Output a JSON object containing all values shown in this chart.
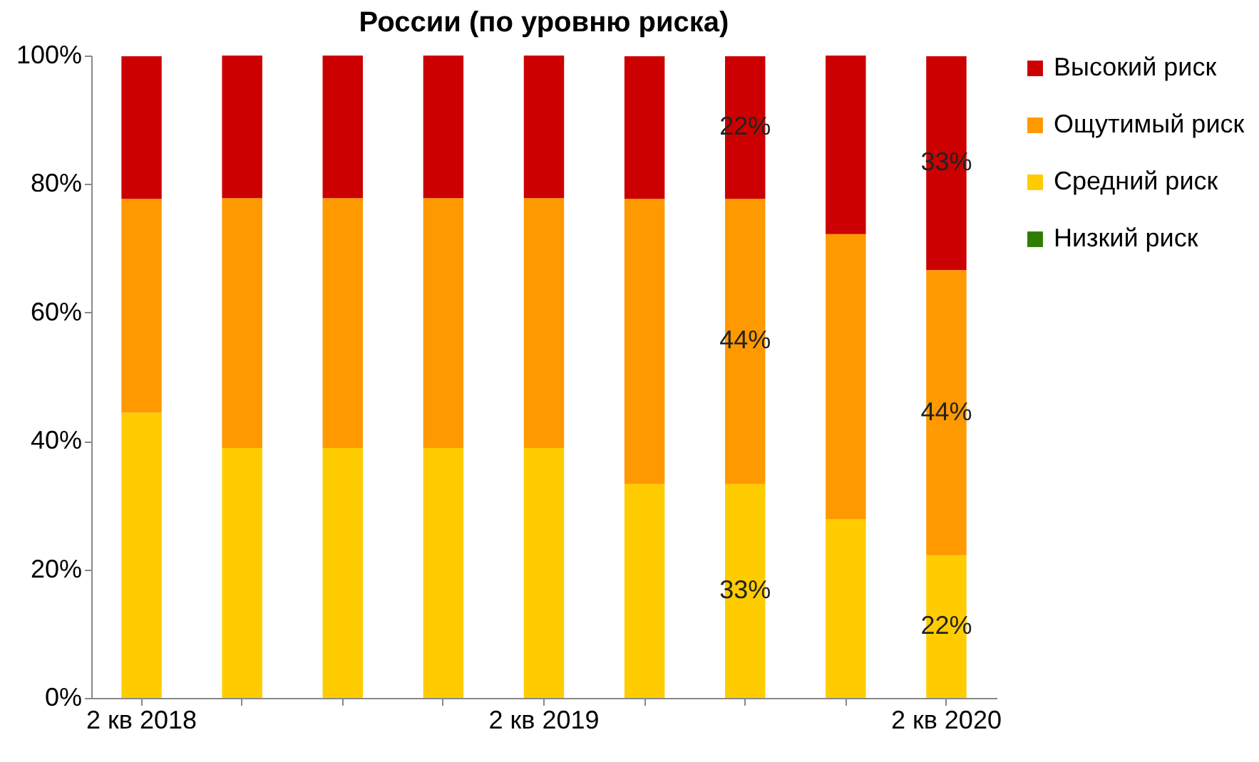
{
  "chart_data": {
    "type": "bar",
    "title": "России (по уровню риска)",
    "stacked": true,
    "categories": [
      "2 кв 2018",
      null,
      null,
      null,
      "2 кв 2019",
      null,
      null,
      null,
      "2 кв 2020"
    ],
    "series": [
      {
        "name": "Низкий риск",
        "color": "#2e7d00",
        "values": [
          0,
          0,
          0,
          0,
          0,
          0,
          0,
          0,
          0
        ]
      },
      {
        "name": "Средний риск",
        "color": "#ffcc00",
        "values": [
          44.4,
          38.9,
          38.9,
          38.9,
          38.9,
          33.3,
          33.3,
          27.8,
          22.2
        ],
        "value_labels": [
          null,
          null,
          null,
          null,
          null,
          null,
          "33%",
          null,
          "22%"
        ]
      },
      {
        "name": "Ощутимый риск",
        "color": "#ff9900",
        "values": [
          33.3,
          38.9,
          38.9,
          38.9,
          38.9,
          44.4,
          44.4,
          44.4,
          44.4
        ],
        "value_labels": [
          null,
          null,
          null,
          null,
          null,
          null,
          "44%",
          null,
          "44%"
        ]
      },
      {
        "name": "Высокий риск",
        "color": "#cc0000",
        "values": [
          22.2,
          22.2,
          22.2,
          22.2,
          22.2,
          22.2,
          22.2,
          27.8,
          33.3
        ],
        "value_labels": [
          null,
          null,
          null,
          null,
          null,
          null,
          "22%",
          null,
          "33%"
        ]
      }
    ],
    "ylim": [
      0,
      100
    ],
    "yticks": [
      {
        "value": 0,
        "label": "0%"
      },
      {
        "value": 20,
        "label": "20%"
      },
      {
        "value": 40,
        "label": "40%"
      },
      {
        "value": 60,
        "label": "60%"
      },
      {
        "value": 80,
        "label": "80%"
      },
      {
        "value": 100,
        "label": "100%"
      }
    ],
    "grid": false,
    "legend": "right"
  }
}
